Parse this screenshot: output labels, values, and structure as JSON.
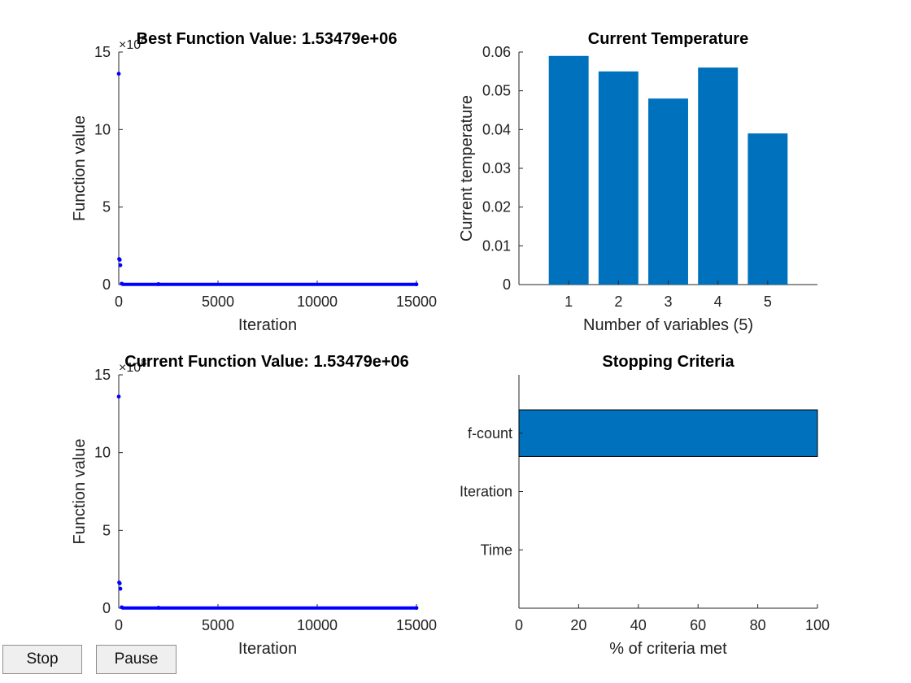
{
  "buttons": {
    "stop_label": "Stop",
    "pause_label": "Pause"
  },
  "colors": {
    "bar": "#0072BD",
    "points": "#0000FF",
    "axis": "#262626"
  },
  "chart_data": [
    {
      "type": "scatter",
      "title": "Best Function Value: 1.53479e+06",
      "xlabel": "Iteration",
      "ylabel": "Function value",
      "xlim": [
        0,
        15000
      ],
      "ylim": [
        0,
        15
      ],
      "xticks": [
        "0",
        "5000",
        "10000",
        "15000"
      ],
      "yticks": [
        "0",
        "5",
        "10",
        "15"
      ],
      "exponent": "×10^8",
      "series": [
        {
          "points": [
            [
              0,
              13.6
            ],
            [
              20,
              1.65
            ],
            [
              50,
              1.6
            ],
            [
              80,
              1.25
            ],
            [
              150,
              0.06
            ],
            [
              2000,
              0.03
            ],
            [
              15000,
              0.015
            ]
          ],
          "baseline": [
            150,
            15000,
            0.015
          ]
        }
      ]
    },
    {
      "type": "bar",
      "title": "Current Temperature",
      "xlabel": "Number of variables (5)",
      "ylabel": "Current temperature",
      "categories": [
        "1",
        "2",
        "3",
        "4",
        "5"
      ],
      "values": [
        0.059,
        0.055,
        0.048,
        0.056,
        0.039
      ],
      "ylim": [
        0,
        0.06
      ],
      "yticks": [
        "0",
        "0.01",
        "0.02",
        "0.03",
        "0.04",
        "0.05",
        "0.06"
      ]
    },
    {
      "type": "scatter",
      "title": "Current Function Value: 1.53479e+06",
      "xlabel": "Iteration",
      "ylabel": "Function value",
      "xlim": [
        0,
        15000
      ],
      "ylim": [
        0,
        15
      ],
      "xticks": [
        "0",
        "5000",
        "10000",
        "15000"
      ],
      "yticks": [
        "0",
        "5",
        "10",
        "15"
      ],
      "exponent": "×10^8",
      "series": [
        {
          "points": [
            [
              0,
              13.6
            ],
            [
              20,
              1.65
            ],
            [
              50,
              1.6
            ],
            [
              80,
              1.25
            ],
            [
              150,
              0.06
            ],
            [
              2000,
              0.03
            ],
            [
              15000,
              0.015
            ]
          ],
          "baseline": [
            150,
            15000,
            0.015
          ]
        }
      ]
    },
    {
      "type": "bar",
      "orientation": "horizontal",
      "title": "Stopping Criteria",
      "xlabel": "% of criteria met",
      "categories": [
        "f-count",
        "Iteration",
        "Time"
      ],
      "values": [
        100,
        0,
        0
      ],
      "xlim": [
        0,
        100
      ],
      "xticks": [
        "0",
        "20",
        "40",
        "60",
        "80",
        "100"
      ]
    }
  ]
}
